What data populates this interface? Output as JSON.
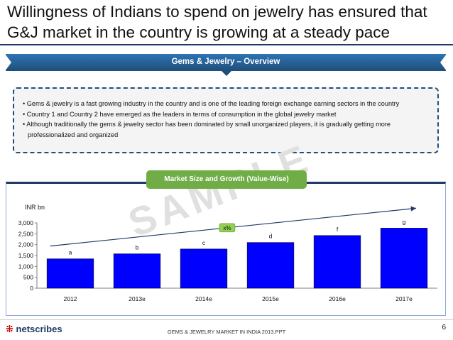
{
  "slide": {
    "title": "Willingness of Indians to spend on jewelry has ensured that G&J market in the country is growing at a steady pace"
  },
  "overview": {
    "header": "Gems & Jewelry – Overview",
    "bullets": [
      "Gems & jewelry is a fast growing industry in the country and is one of the leading foreign exchange earning sectors in the country",
      "Country 1 and Country 2 have emerged as the leaders in terms of consumption in the global jewelry market",
      "Although traditionally the gems & jewelry sector has been dominated by small unorganized players, it is gradually getting more professionalized and organized"
    ]
  },
  "chart_section": {
    "header": "Market Size and Growth (Value-Wise)",
    "watermark": "SAMPLE"
  },
  "chart_data": {
    "type": "bar",
    "unit_label": "INR bn",
    "categories": [
      "2012",
      "2013e",
      "2014e",
      "2015e",
      "2016e",
      "2017e"
    ],
    "values": [
      1350,
      1580,
      1800,
      2100,
      2420,
      2760
    ],
    "data_labels": [
      "a",
      "b",
      "c",
      "d",
      "f",
      "g"
    ],
    "ylim": [
      0,
      3000
    ],
    "yticks": [
      "0",
      "500",
      "1,000",
      "1,500",
      "2,000",
      "2,500",
      "3,000"
    ],
    "ytick_values": [
      0,
      500,
      1000,
      1500,
      2000,
      2500,
      3000
    ],
    "growth_label": "x%",
    "bar_color": "#0000ff",
    "grid": false
  },
  "footer": {
    "logo": "netscribes",
    "text": "GEMS & JEWELRY MARKET IN INDIA 2013.PPT",
    "page": "6"
  },
  "colors": {
    "navy": "#1f3864",
    "blue": "#2e74b5",
    "green": "#70ad47",
    "bar": "#0000ff"
  }
}
